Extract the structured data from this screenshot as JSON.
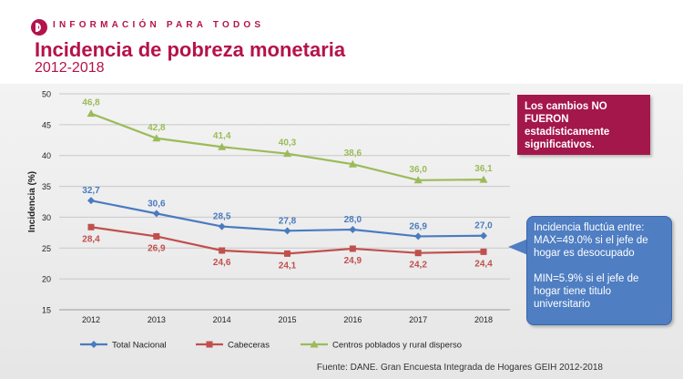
{
  "header": {
    "tagline": "INFORMACIÓN PARA TODOS",
    "title": "Incidencia de pobreza monetaria",
    "subtitle": "2012-2018"
  },
  "note_box": {
    "text": "Los cambios NO FUERON estadísticamente significativos."
  },
  "callout": {
    "line1": "Incidencia fluctúa entre:",
    "line2": "MAX=49.0% si el jefe de hogar es desocupado",
    "line3": "MIN=5.9% si el jefe de hogar tiene titulo universitario"
  },
  "source": "Fuente: DANE. Gran Encuesta Integrada de Hogares GEIH 2012-2018",
  "colors": {
    "brand": "#b5124b",
    "total": "#4a7bc0",
    "cabeceras": "#c0504d",
    "rural": "#9bbb59"
  },
  "chart_data": {
    "type": "line",
    "title": "",
    "xlabel": "",
    "ylabel": "Incidencia (%)",
    "ylim": [
      15,
      50
    ],
    "yticks": [
      15,
      20,
      25,
      30,
      35,
      40,
      45,
      50
    ],
    "grid": true,
    "legend": "bottom",
    "x": [
      "2012",
      "2013",
      "2014",
      "2015",
      "2016",
      "2017",
      "2018"
    ],
    "series": [
      {
        "name": "Total Nacional",
        "values": [
          32.7,
          30.6,
          28.5,
          27.8,
          28.0,
          26.9,
          27.0
        ],
        "labels": [
          "32,7",
          "30,6",
          "28,5",
          "27,8",
          "28,0",
          "26,9",
          "27,0"
        ],
        "marker": "diamond",
        "color": "#4a7bc0"
      },
      {
        "name": "Cabeceras",
        "values": [
          28.4,
          26.9,
          24.6,
          24.1,
          24.9,
          24.2,
          24.4
        ],
        "labels": [
          "28,4",
          "26,9",
          "24,6",
          "24,1",
          "24,9",
          "24,2",
          "24,4"
        ],
        "marker": "square",
        "color": "#c0504d"
      },
      {
        "name": "Centros poblados y rural disperso",
        "values": [
          46.8,
          42.8,
          41.4,
          40.3,
          38.6,
          36.0,
          36.1
        ],
        "labels": [
          "46,8",
          "42,8",
          "41,4",
          "40,3",
          "38,6",
          "36,0",
          "36,1"
        ],
        "marker": "triangle",
        "color": "#9bbb59"
      }
    ]
  }
}
